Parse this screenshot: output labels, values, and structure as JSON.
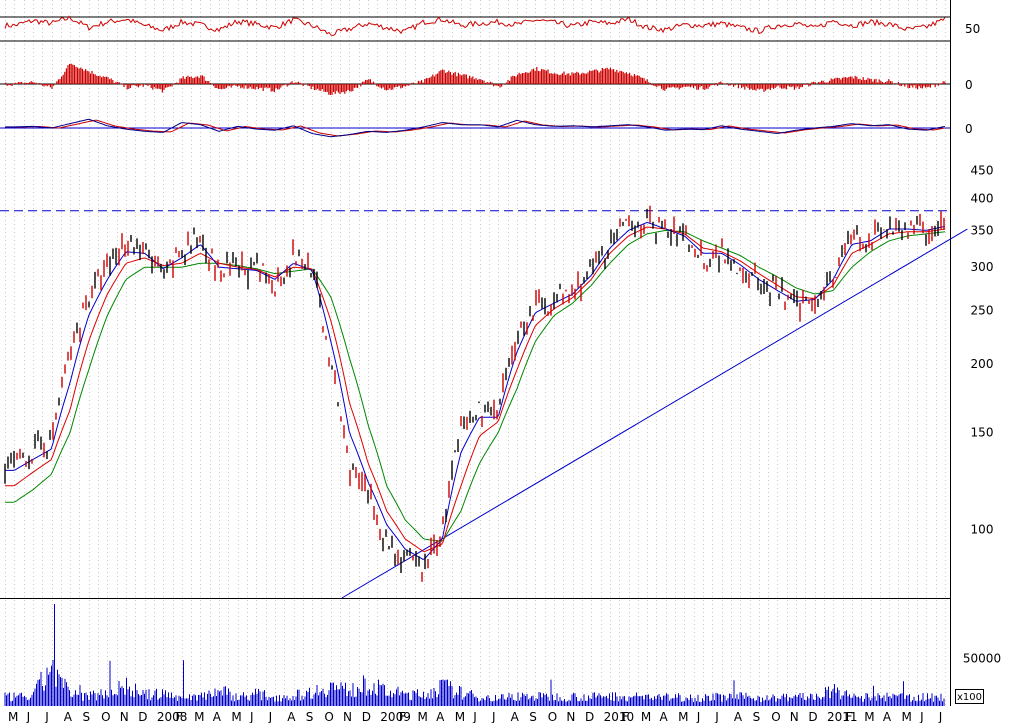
{
  "chart_data": {
    "type": "line",
    "scale": "log",
    "grid": true,
    "colors": {
      "price_bars": "#000000",
      "ma_short": "#0000cc",
      "ma_mid": "#dd0000",
      "ma_long": "#008800",
      "trendline": "#0000cc",
      "resistance": "#0000cc",
      "oscillator": "#cc0000",
      "volume": "#0000cc"
    },
    "months": [
      "M",
      "J",
      "J",
      "A",
      "S",
      "O",
      "N",
      "D",
      "2008",
      "F",
      "M",
      "A",
      "M",
      "J",
      "J",
      "A",
      "S",
      "O",
      "N",
      "D",
      "2009",
      "F",
      "M",
      "A",
      "M",
      "J",
      "J",
      "A",
      "S",
      "O",
      "N",
      "D",
      "2010",
      "F",
      "M",
      "A",
      "M",
      "J",
      "J",
      "A",
      "S",
      "O",
      "N",
      "D",
      "2011",
      "F",
      "M",
      "A",
      "M",
      "J",
      "J"
    ],
    "price_axis": {
      "ticks": [
        100,
        150,
        200,
        250,
        300,
        350,
        400,
        450
      ],
      "ylim": [
        75,
        480
      ]
    },
    "price_series": {
      "months": [
        0,
        1,
        2,
        3,
        4,
        5,
        6,
        7,
        8,
        9,
        10,
        11,
        12,
        13,
        14,
        15,
        16,
        17,
        18,
        19,
        20,
        21,
        22,
        23,
        24,
        25,
        26,
        27,
        28,
        29,
        30,
        31,
        32,
        33,
        34,
        35,
        36,
        37,
        38,
        39,
        40,
        41,
        42,
        43,
        44,
        45,
        46,
        47,
        48,
        49,
        50,
        51
      ],
      "close": [
        132,
        138,
        145,
        210,
        265,
        300,
        335,
        320,
        285,
        320,
        345,
        290,
        300,
        295,
        280,
        315,
        300,
        195,
        130,
        115,
        95,
        88,
        85,
        100,
        150,
        165,
        160,
        225,
        255,
        260,
        270,
        295,
        330,
        355,
        365,
        350,
        340,
        310,
        320,
        300,
        280,
        270,
        255,
        265,
        290,
        340,
        330,
        360,
        355,
        350,
        360,
        375
      ]
    },
    "ma_short": [
      128,
      134,
      140,
      185,
      245,
      285,
      320,
      318,
      298,
      312,
      330,
      300,
      298,
      296,
      285,
      305,
      296,
      220,
      150,
      122,
      102,
      92,
      88,
      96,
      138,
      160,
      160,
      210,
      248,
      258,
      268,
      290,
      325,
      350,
      362,
      352,
      342,
      318,
      318,
      303,
      285,
      272,
      260,
      262,
      285,
      330,
      335,
      352,
      352,
      350,
      356,
      366
    ],
    "ma_mid": [
      120,
      127,
      134,
      165,
      220,
      268,
      305,
      312,
      302,
      305,
      318,
      305,
      300,
      297,
      288,
      300,
      298,
      240,
      170,
      132,
      108,
      96,
      91,
      94,
      120,
      148,
      157,
      195,
      235,
      252,
      264,
      285,
      318,
      342,
      355,
      352,
      345,
      325,
      320,
      308,
      292,
      278,
      265,
      263,
      278,
      318,
      330,
      345,
      348,
      348,
      352,
      360
    ],
    "ma_long": [
      112,
      118,
      126,
      150,
      195,
      245,
      285,
      300,
      300,
      300,
      305,
      305,
      302,
      298,
      292,
      295,
      298,
      265,
      205,
      155,
      120,
      104,
      96,
      95,
      108,
      132,
      150,
      180,
      220,
      245,
      258,
      278,
      305,
      330,
      345,
      350,
      348,
      335,
      325,
      315,
      300,
      288,
      275,
      268,
      272,
      300,
      320,
      335,
      342,
      345,
      348,
      355
    ],
    "trendline": {
      "start": {
        "month": 17.6,
        "price": 75
      },
      "end": {
        "month": 51.2,
        "price": 352
      }
    },
    "resistance": {
      "price": 380
    },
    "indicators": [
      {
        "tick": "50",
        "baseline": 50,
        "ylim": [
          30,
          72
        ],
        "values": [
          55,
          62,
          58,
          66,
          52,
          60,
          64,
          55,
          48,
          60,
          56,
          49,
          61,
          57,
          52,
          63,
          55,
          42,
          50,
          58,
          52,
          46,
          60,
          64,
          55,
          58,
          60,
          56,
          63,
          59,
          54,
          60,
          58,
          64,
          52,
          49,
          56,
          55,
          58,
          52,
          47,
          55,
          58,
          51,
          62,
          55,
          60,
          57,
          49,
          53,
          64,
          58
        ]
      },
      {
        "tick": "0",
        "baseline": 0,
        "ylim": [
          -20,
          40
        ],
        "values": [
          0,
          3,
          -6,
          30,
          18,
          8,
          -5,
          -2,
          -10,
          8,
          12,
          -8,
          -3,
          -6,
          -9,
          4,
          -6,
          -14,
          -10,
          6,
          -8,
          -3,
          4,
          20,
          12,
          8,
          -4,
          14,
          22,
          16,
          14,
          18,
          22,
          16,
          4,
          -8,
          -4,
          -6,
          2,
          -4,
          -10,
          -4,
          -6,
          2,
          6,
          10,
          6,
          4,
          -4,
          -6,
          4,
          -5
        ]
      },
      {
        "tick": "0",
        "baseline": 0,
        "ylim": [
          -24,
          28
        ],
        "values": [
          2,
          3,
          0,
          8,
          16,
          4,
          -2,
          -6,
          -8,
          10,
          6,
          -6,
          3,
          -2,
          -4,
          4,
          -10,
          -16,
          -12,
          -6,
          -8,
          -4,
          2,
          10,
          6,
          6,
          2,
          14,
          6,
          3,
          4,
          2,
          4,
          6,
          2,
          -4,
          -2,
          -3,
          4,
          -2,
          -6,
          -10,
          -4,
          0,
          3,
          8,
          4,
          6,
          -2,
          -4,
          3,
          2
        ]
      }
    ],
    "volume": {
      "ticks": [
        50000
      ],
      "scale_label": "x100",
      "ylim": [
        0,
        110000
      ],
      "values": [
        9000,
        9500,
        40000,
        11000,
        10000,
        14000,
        20000,
        11000,
        12000,
        9000,
        10000,
        16000,
        9000,
        12000,
        9000,
        10000,
        14000,
        20000,
        15000,
        22000,
        14000,
        12000,
        11000,
        20000,
        13000,
        9000,
        8000,
        10000,
        9500,
        9000,
        9500,
        9000,
        10000,
        9000,
        9500,
        8500,
        9000,
        8500,
        9000,
        9000,
        8500,
        8000,
        9500,
        9000,
        15000,
        9000,
        8500,
        9000,
        9000,
        8500,
        9000,
        12000
      ]
    }
  }
}
